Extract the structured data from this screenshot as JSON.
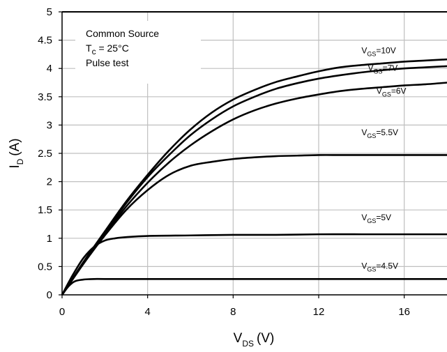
{
  "chart_data": {
    "type": "line",
    "xlabel_main": "V",
    "xlabel_sub": "DS",
    "xlabel_unit": "(V)",
    "ylabel_main": "I",
    "ylabel_sub": "D",
    "ylabel_unit": "(A)",
    "xlim": [
      0,
      18
    ],
    "ylim": [
      0,
      5
    ],
    "x_ticks": [
      0,
      4,
      8,
      12,
      16
    ],
    "y_ticks": [
      0,
      0.5,
      1,
      1.5,
      2,
      2.5,
      3,
      3.5,
      4,
      4.5,
      5
    ],
    "x_tick_labels": [
      "0",
      "4",
      "8",
      "12",
      "16"
    ],
    "y_tick_labels": [
      "0",
      "0.5",
      "1",
      "1.5",
      "2",
      "2.5",
      "3",
      "3.5",
      "4",
      "4.5",
      "5"
    ],
    "grid": true,
    "annotation": {
      "line1": "Common Source",
      "line2_main": "T",
      "line2_sub": "c",
      "line2_rest": " = 25°C",
      "line3": "Pulse test"
    },
    "series": [
      {
        "label_main": "V",
        "label_sub": "GS",
        "label_rest": "=10V",
        "x": [
          0,
          1,
          2,
          3,
          4,
          5,
          6,
          7,
          8,
          9,
          10,
          11,
          12,
          13,
          14,
          15,
          16,
          17,
          18
        ],
        "y": [
          0,
          0.58,
          1.12,
          1.65,
          2.12,
          2.55,
          2.92,
          3.22,
          3.45,
          3.62,
          3.76,
          3.86,
          3.95,
          4.02,
          4.06,
          4.09,
          4.12,
          4.14,
          4.16
        ]
      },
      {
        "label_main": "V",
        "label_sub": "GS",
        "label_rest": "=7V",
        "x": [
          0,
          1,
          2,
          3,
          4,
          5,
          6,
          7,
          8,
          9,
          10,
          11,
          12,
          13,
          14,
          15,
          16,
          17,
          18
        ],
        "y": [
          0,
          0.57,
          1.1,
          1.62,
          2.08,
          2.47,
          2.82,
          3.1,
          3.33,
          3.5,
          3.64,
          3.74,
          3.82,
          3.88,
          3.93,
          3.97,
          4.0,
          4.02,
          4.04
        ]
      },
      {
        "label_main": "V",
        "label_sub": "GS",
        "label_rest": "=6V",
        "x": [
          0,
          1,
          2,
          3,
          4,
          5,
          6,
          7,
          8,
          9,
          10,
          11,
          12,
          13,
          14,
          15,
          16,
          17,
          18
        ],
        "y": [
          0,
          0.55,
          1.07,
          1.56,
          1.98,
          2.34,
          2.64,
          2.89,
          3.1,
          3.26,
          3.38,
          3.47,
          3.54,
          3.6,
          3.64,
          3.67,
          3.7,
          3.72,
          3.75
        ]
      },
      {
        "label_main": "V",
        "label_sub": "GS",
        "label_rest": "=5.5V",
        "x": [
          0,
          1,
          2,
          3,
          4,
          5,
          6,
          7,
          8,
          9,
          10,
          11,
          12,
          13,
          14,
          15,
          16,
          17,
          18
        ],
        "y": [
          0,
          0.55,
          1.05,
          1.5,
          1.85,
          2.12,
          2.28,
          2.35,
          2.4,
          2.43,
          2.45,
          2.46,
          2.47,
          2.47,
          2.47,
          2.47,
          2.47,
          2.47,
          2.47
        ]
      },
      {
        "label_main": "V",
        "label_sub": "GS",
        "label_rest": "=5V",
        "x": [
          0,
          0.5,
          1,
          1.5,
          2,
          2.5,
          3,
          4,
          6,
          8,
          10,
          12,
          14,
          16,
          18
        ],
        "y": [
          0,
          0.35,
          0.65,
          0.85,
          0.96,
          1.0,
          1.02,
          1.04,
          1.05,
          1.06,
          1.06,
          1.07,
          1.07,
          1.07,
          1.07
        ]
      },
      {
        "label_main": "V",
        "label_sub": "GS",
        "label_rest": "=4.5V",
        "x": [
          0,
          0.3,
          0.6,
          1,
          1.5,
          2,
          4,
          8,
          12,
          16,
          18
        ],
        "y": [
          0,
          0.15,
          0.24,
          0.27,
          0.28,
          0.28,
          0.28,
          0.28,
          0.28,
          0.28,
          0.28
        ]
      }
    ]
  }
}
